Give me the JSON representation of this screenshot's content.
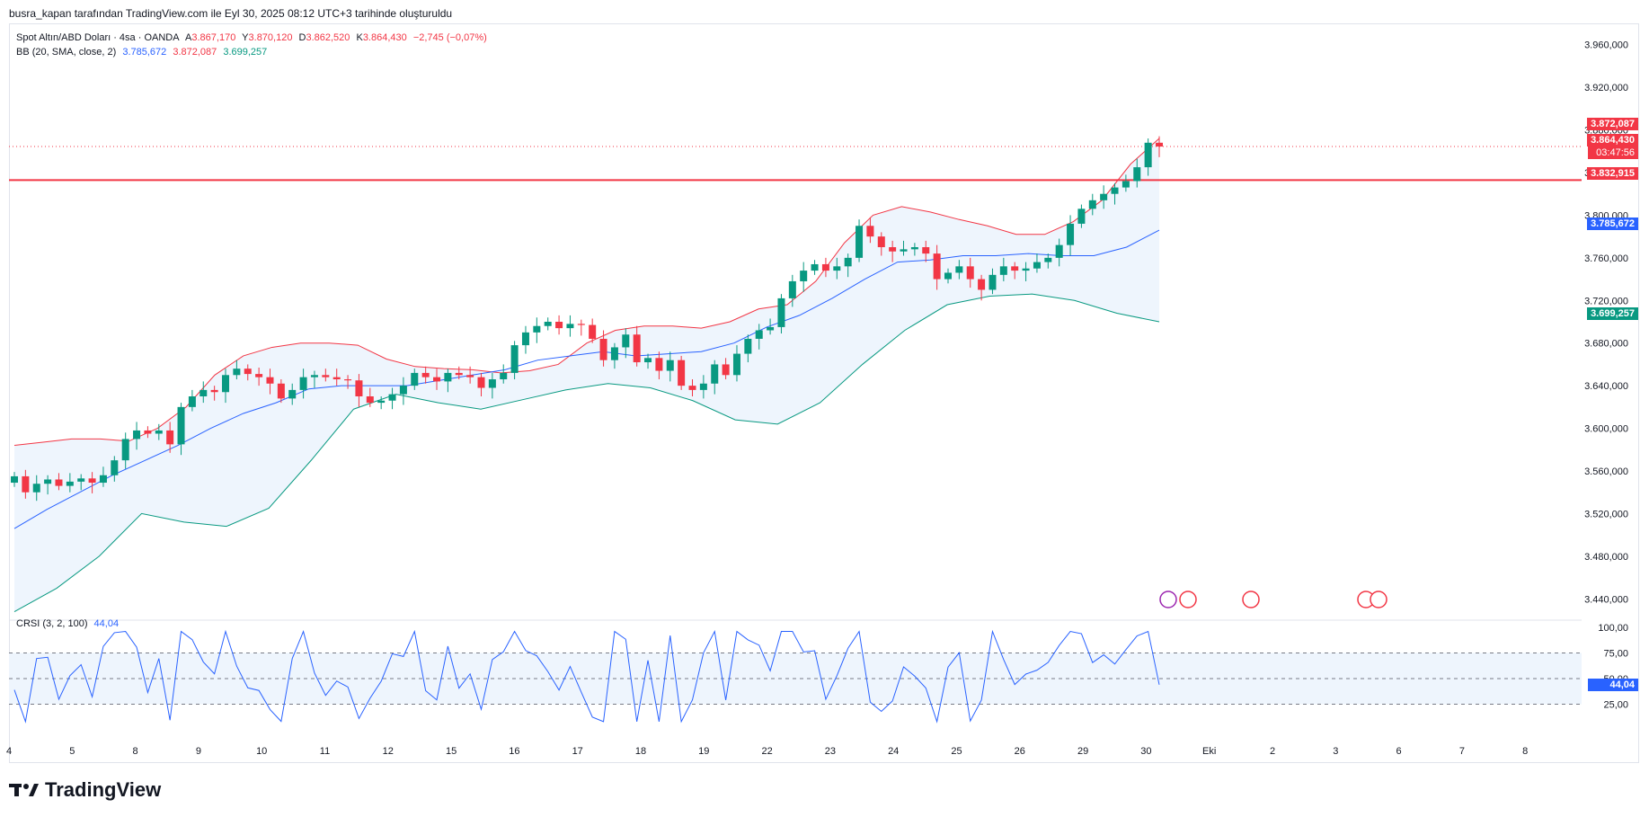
{
  "caption": "busra_kapan tarafından TradingView.com ile Eyl 30, 2025 08:12 UTC+3 tarihinde oluşturuldu",
  "legend": {
    "symbol": "Spot Altın/ABD Doları · 4sa · OANDA",
    "open_label": "A",
    "open": "3.867,170",
    "high_label": "Y",
    "high": "3.870,120",
    "low_label": "D",
    "low": "3.862,520",
    "close_label": "K",
    "close": "3.864,430",
    "change": "−2,745 (−0,07%)",
    "bb_label": "BB (20, SMA, close, 2)",
    "bb_mid": "3.785,672",
    "bb_upper": "3.872,087",
    "bb_lower": "3.699,257",
    "crsi_label": "CRSI (3, 2, 100)",
    "crsi_value": "44,04"
  },
  "price_tags": {
    "upper": "3.872,087",
    "last": "3.864,430",
    "countdown": "03:47:56",
    "hline": "3.832,915",
    "mid": "3.785,672",
    "lower": "3.699,257",
    "crsi": "44,04"
  },
  "footer": {
    "brand": "TradingView"
  },
  "colors": {
    "up": "#089981",
    "down": "#f23645",
    "bb_basis": "#2962ff",
    "bb_upper": "#f23645",
    "bb_lower": "#089981",
    "bb_fill": "#eef5fd",
    "hline": "#f23645",
    "crsi": "#2962ff"
  },
  "chart_data": {
    "type": "candlestick",
    "y_axis": {
      "min": 3420,
      "max": 3980,
      "ticks": [
        3440,
        3480,
        3520,
        3560,
        3600,
        3640,
        3680,
        3720,
        3760,
        3800,
        3840,
        3880,
        3920,
        3960
      ],
      "tick_labels": [
        "3.440,000",
        "3.480,000",
        "3.520,000",
        "3.560,000",
        "3.600,000",
        "3.640,000",
        "3.680,000",
        "3.720,000",
        "3.760,000",
        "3.800,000",
        "3.840,000",
        "3.880,000",
        "3.920,000",
        "3.960,000"
      ]
    },
    "x_axis": {
      "labels": [
        "4",
        "5",
        "8",
        "9",
        "10",
        "11",
        "12",
        "15",
        "16",
        "17",
        "18",
        "19",
        "22",
        "23",
        "24",
        "25",
        "26",
        "29",
        "30",
        "Eki",
        "2",
        "3",
        "6",
        "7",
        "8"
      ]
    },
    "horizontal_line": 3832.915,
    "closes": [
      3555,
      3540,
      3548,
      3552,
      3546,
      3550,
      3553,
      3549,
      3556,
      3570,
      3590,
      3598,
      3595,
      3598,
      3585,
      3620,
      3630,
      3636,
      3634,
      3650,
      3656,
      3651,
      3648,
      3642,
      3628,
      3636,
      3648,
      3650,
      3648,
      3646,
      3645,
      3630,
      3624,
      3626,
      3632,
      3640,
      3652,
      3648,
      3644,
      3652,
      3650,
      3648,
      3638,
      3646,
      3652,
      3678,
      3690,
      3696,
      3700,
      3694,
      3698,
      3697,
      3684,
      3664,
      3676,
      3688,
      3662,
      3666,
      3654,
      3664,
      3640,
      3636,
      3642,
      3660,
      3650,
      3670,
      3684,
      3692,
      3695,
      3722,
      3738,
      3748,
      3754,
      3748,
      3752,
      3760,
      3790,
      3780,
      3770,
      3766,
      3768,
      3770,
      3764,
      3740,
      3746,
      3752,
      3740,
      3730,
      3744,
      3752,
      3748,
      3750,
      3756,
      3760,
      3772,
      3792,
      3806,
      3814,
      3820,
      3826,
      3832,
      3845,
      3868,
      3864.43
    ],
    "bb_upper": [
      3584,
      3587,
      3590,
      3590,
      3588,
      3600,
      3620,
      3650,
      3668,
      3676,
      3680,
      3680,
      3678,
      3665,
      3658,
      3656,
      3655,
      3652,
      3654,
      3660,
      3680,
      3692,
      3696,
      3696,
      3694,
      3700,
      3712,
      3716,
      3738,
      3774,
      3800,
      3808,
      3803,
      3796,
      3790,
      3782,
      3782,
      3794,
      3814,
      3848,
      3872
    ],
    "bb_basis": [
      3506,
      3524,
      3540,
      3556,
      3570,
      3584,
      3600,
      3614,
      3624,
      3637,
      3640,
      3640,
      3640,
      3645,
      3650,
      3655,
      3664,
      3668,
      3672,
      3668,
      3670,
      3672,
      3680,
      3695,
      3706,
      3722,
      3740,
      3756,
      3758,
      3762,
      3762,
      3764,
      3762,
      3762,
      3770,
      3786
    ],
    "bb_lower": [
      3428,
      3450,
      3480,
      3520,
      3512,
      3508,
      3525,
      3570,
      3618,
      3632,
      3624,
      3618,
      3627,
      3636,
      3642,
      3638,
      3626,
      3608,
      3604,
      3624,
      3660,
      3692,
      3716,
      3724,
      3726,
      3720,
      3708,
      3700
    ],
    "crsi": {
      "range": [
        0,
        100
      ],
      "levels": [
        25,
        50,
        75
      ],
      "tick_labels": [
        "100,00",
        "75,00",
        "50,00",
        "25,00"
      ],
      "last": 44.04
    }
  }
}
